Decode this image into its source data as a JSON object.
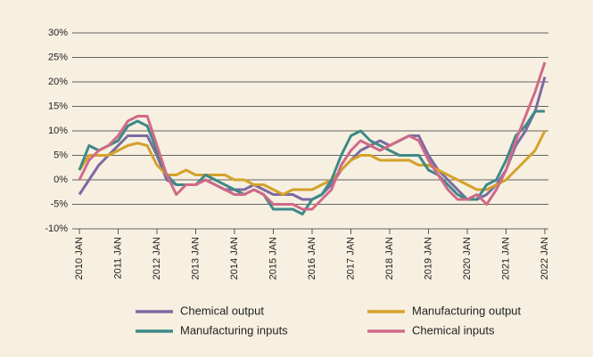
{
  "chart_data": {
    "type": "line",
    "x": [
      2010,
      2010.25,
      2010.5,
      2010.75,
      2011,
      2011.25,
      2011.5,
      2011.75,
      2012,
      2012.25,
      2012.5,
      2012.75,
      2013,
      2013.25,
      2013.5,
      2013.75,
      2014,
      2014.25,
      2014.5,
      2014.75,
      2015,
      2015.25,
      2015.5,
      2015.75,
      2016,
      2016.25,
      2016.5,
      2016.75,
      2017,
      2017.25,
      2017.5,
      2017.75,
      2018,
      2018.25,
      2018.5,
      2018.75,
      2019,
      2019.25,
      2019.5,
      2019.75,
      2020,
      2020.25,
      2020.5,
      2020.75,
      2021,
      2021.25,
      2021.5,
      2021.75,
      2022
    ],
    "xlim": [
      2010,
      2022
    ],
    "xticks": [
      {
        "value": 2010,
        "label": "2010 JAN"
      },
      {
        "value": 2011,
        "label": "2011 JAN"
      },
      {
        "value": 2012,
        "label": "2012 JAN"
      },
      {
        "value": 2013,
        "label": "2013 JAN"
      },
      {
        "value": 2014,
        "label": "2014 JAN"
      },
      {
        "value": 2015,
        "label": "2015 JAN"
      },
      {
        "value": 2016,
        "label": "2016 JAN"
      },
      {
        "value": 2017,
        "label": "2017 JAN"
      },
      {
        "value": 2018,
        "label": "2018 JAN"
      },
      {
        "value": 2019,
        "label": "2019 JAN"
      },
      {
        "value": 2020,
        "label": "2020 JAN"
      },
      {
        "value": 2021,
        "label": "2021 JAN"
      },
      {
        "value": 2022,
        "label": "2022 JAN"
      }
    ],
    "ylim": [
      -10,
      30
    ],
    "yticks": [
      {
        "value": -10,
        "label": "-10%"
      },
      {
        "value": -5,
        "label": "-5%"
      },
      {
        "value": 0,
        "label": "0%"
      },
      {
        "value": 5,
        "label": "5%"
      },
      {
        "value": 10,
        "label": "10%"
      },
      {
        "value": 15,
        "label": "15%"
      },
      {
        "value": 20,
        "label": "20%"
      },
      {
        "value": 25,
        "label": "25%"
      },
      {
        "value": 30,
        "label": "30%"
      }
    ],
    "grid": true,
    "legend": "bottom",
    "series": [
      {
        "name": "Chemical output",
        "color": "#7c6aa2",
        "values": [
          -3,
          0,
          3,
          5,
          7,
          9,
          9,
          9,
          5,
          0,
          -1,
          -1,
          -1,
          0,
          -1,
          -2,
          -2,
          -2,
          -1,
          -2,
          -3,
          -3,
          -3,
          -4,
          -4,
          -3,
          -1,
          2,
          4,
          6,
          7,
          8,
          7,
          8,
          9,
          9,
          5,
          2,
          0,
          -2,
          -4,
          -4,
          -3,
          -1,
          2,
          7,
          10,
          14,
          21
        ]
      },
      {
        "name": "Manufacturing output",
        "color": "#d4a22a",
        "values": [
          2,
          5,
          5,
          5,
          6,
          7,
          7.5,
          7,
          3,
          1,
          1,
          2,
          1,
          1,
          1,
          1,
          0,
          0,
          -1,
          -1,
          -2,
          -3,
          -2,
          -2,
          -2,
          -1,
          0,
          2,
          4,
          5,
          5,
          4,
          4,
          4,
          4,
          3,
          3,
          2,
          1,
          0,
          -1,
          -2,
          -2,
          -1,
          0,
          2,
          4,
          6,
          10
        ]
      },
      {
        "name": "Manufacturing inputs",
        "color": "#3d8a88",
        "values": [
          2,
          7,
          6,
          7,
          8,
          11,
          12,
          11,
          6,
          1,
          -1,
          -1,
          -1,
          1,
          0,
          -1,
          -2,
          -3,
          -2,
          -3,
          -6,
          -6,
          -6,
          -7,
          -4,
          -3,
          0,
          5,
          9,
          10,
          8,
          7,
          6,
          5,
          5,
          5,
          2,
          1,
          -1,
          -3,
          -4,
          -4,
          -1,
          0,
          4,
          9,
          11,
          14,
          14
        ]
      },
      {
        "name": "Chemical inputs",
        "color": "#d06a88",
        "values": [
          0,
          4,
          6,
          7,
          9,
          12,
          13,
          13,
          7,
          1,
          -3,
          -1,
          -1,
          0,
          -1,
          -2,
          -3,
          -3,
          -2,
          -3,
          -5,
          -5,
          -5,
          -6,
          -6,
          -4,
          -2,
          3,
          6,
          8,
          7,
          6,
          7,
          8,
          9,
          8,
          4,
          1,
          -2,
          -4,
          -4,
          -3,
          -5,
          -2,
          2,
          8,
          13,
          18,
          24
        ]
      }
    ]
  }
}
